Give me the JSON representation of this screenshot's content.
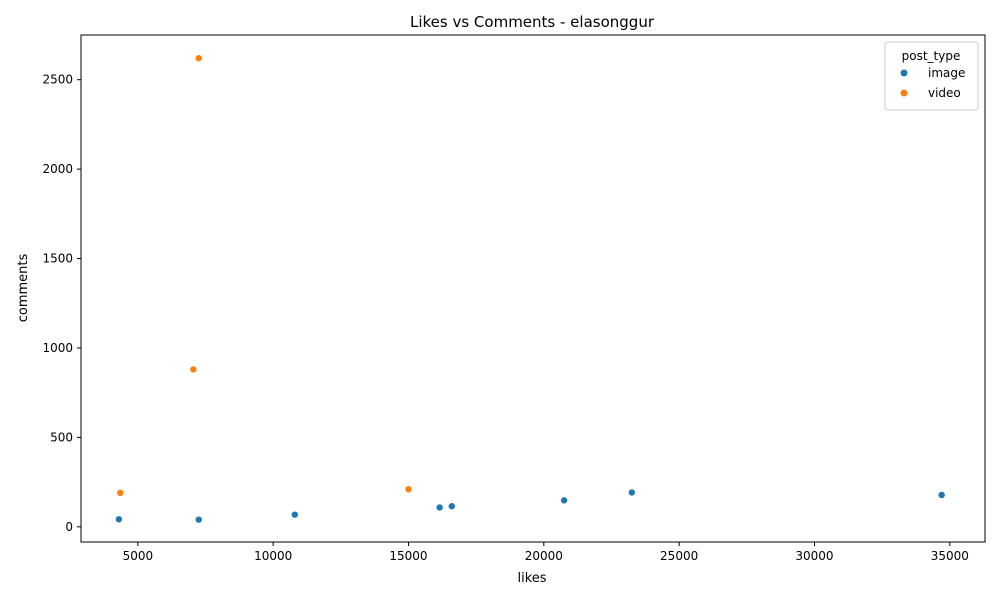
{
  "chart_data": {
    "type": "scatter",
    "title": "Likes vs Comments - elasonggur",
    "xlabel": "likes",
    "ylabel": "comments",
    "xlim": [
      2900,
      36300
    ],
    "ylim": [
      -85,
      2750
    ],
    "xticks": [
      5000,
      10000,
      15000,
      20000,
      25000,
      30000,
      35000
    ],
    "yticks": [
      0,
      500,
      1000,
      1500,
      2000,
      2500
    ],
    "grid": false,
    "legend": {
      "title": "post_type",
      "placement": "top-right"
    },
    "series": [
      {
        "name": "image",
        "color": "#1f77b4",
        "points": [
          {
            "x": 4300,
            "y": 42
          },
          {
            "x": 7250,
            "y": 40
          },
          {
            "x": 10800,
            "y": 68
          },
          {
            "x": 16150,
            "y": 108
          },
          {
            "x": 16600,
            "y": 115
          },
          {
            "x": 20750,
            "y": 148
          },
          {
            "x": 23250,
            "y": 192
          },
          {
            "x": 34700,
            "y": 178
          }
        ]
      },
      {
        "name": "video",
        "color": "#ff7f0e",
        "points": [
          {
            "x": 4350,
            "y": 190
          },
          {
            "x": 7050,
            "y": 880
          },
          {
            "x": 7250,
            "y": 2620
          },
          {
            "x": 15000,
            "y": 210
          }
        ]
      }
    ]
  }
}
